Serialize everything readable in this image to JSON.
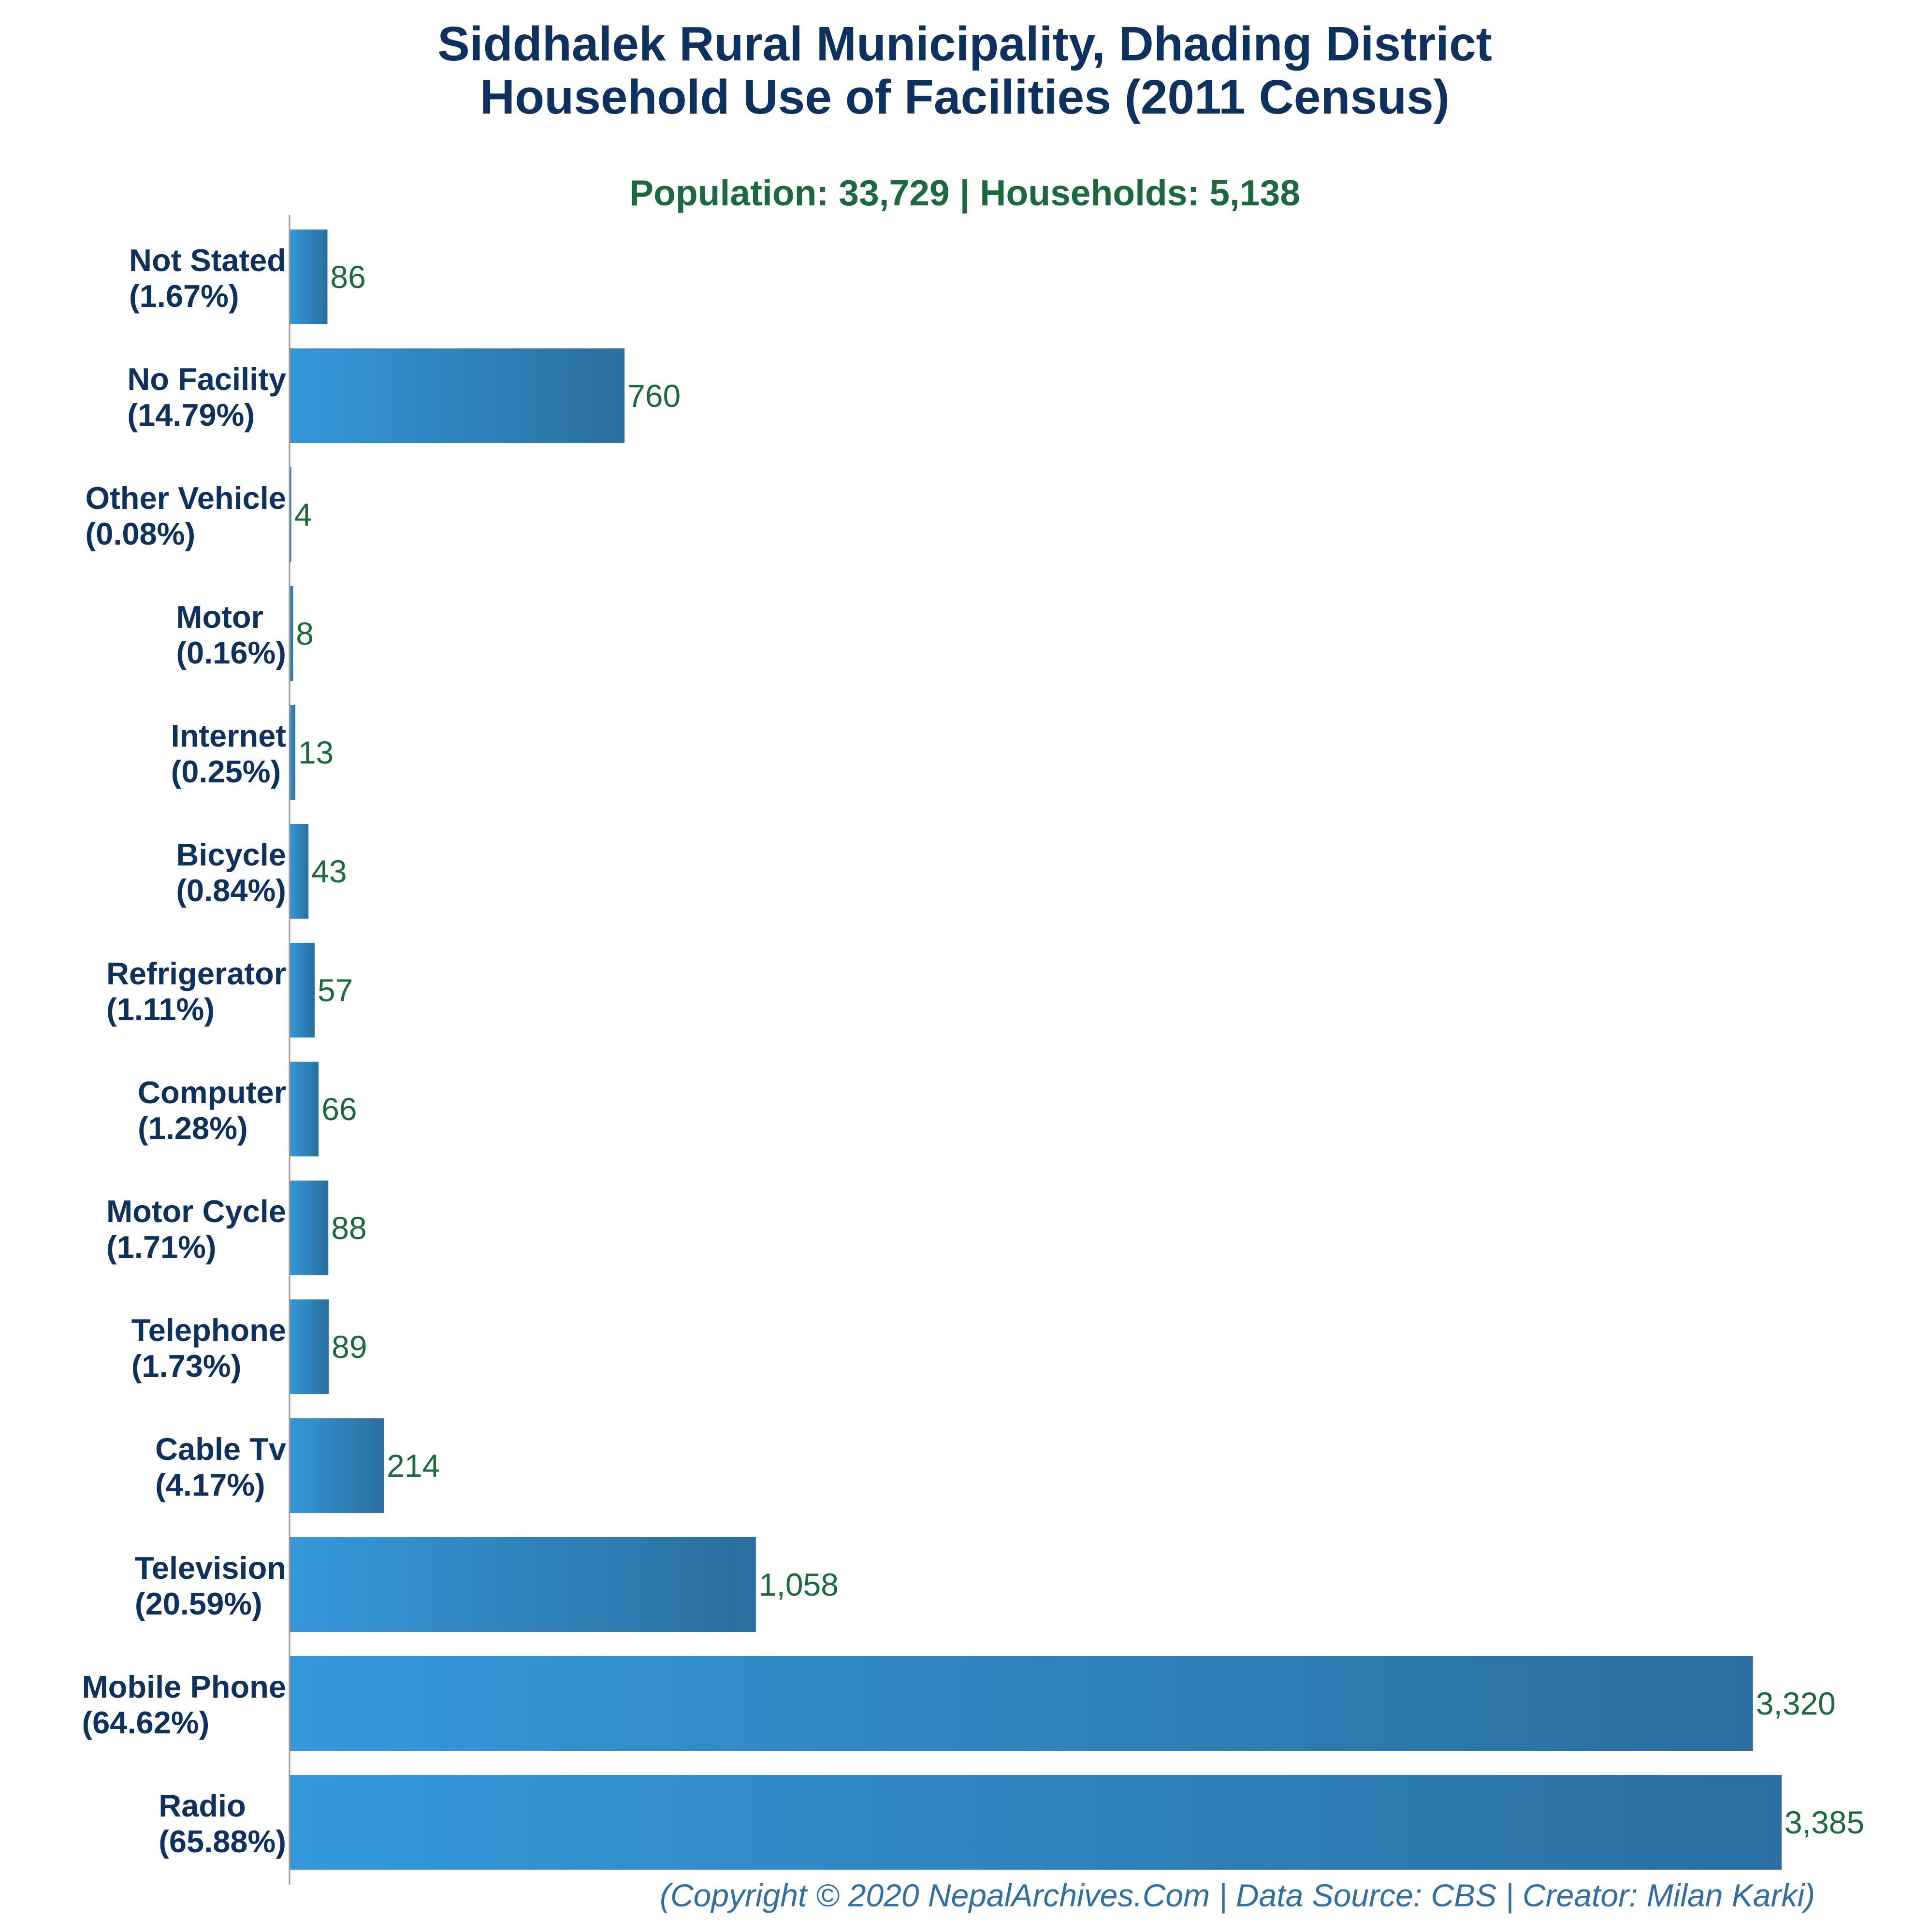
{
  "title_lines": [
    "Siddhalek Rural Municipality, Dhading District",
    "Household Use of Facilities (2011 Census)"
  ],
  "subtitle": "Population: 33,729 | Households: 5,138",
  "footer": "(Copyright © 2020 NepalArchives.Com | Data Source: CBS | Creator: Milan Karki)",
  "colors": {
    "title": "#0d3260",
    "subtitle": "#1b6a3e",
    "category_label": "#0d3260",
    "value_label": "#1b6a3e",
    "footer": "#2e6fa6",
    "bar_gradient_start": "#3498db",
    "bar_gradient_end": "#2a6f9f",
    "axis": "#999999"
  },
  "chart_data": {
    "type": "bar",
    "orientation": "horizontal",
    "title": "Siddhalek Rural Municipality, Dhading District Household Use of Facilities (2011 Census)",
    "xlabel": "",
    "ylabel": "",
    "xlim": [
      0,
      3385
    ],
    "grid": false,
    "legend": "none",
    "categories": [
      "Not Stated",
      "No Facility",
      "Other Vehicle",
      "Motor",
      "Internet",
      "Bicycle",
      "Refrigerator",
      "Computer",
      "Motor Cycle",
      "Telephone",
      "Cable Tv",
      "Television",
      "Mobile Phone",
      "Radio"
    ],
    "percent_labels": [
      "(1.67%)",
      "(14.79%)",
      "(0.08%)",
      "(0.16%)",
      "(0.25%)",
      "(0.84%)",
      "(1.11%)",
      "(1.28%)",
      "(1.71%)",
      "(1.73%)",
      "(4.17%)",
      "(20.59%)",
      "(64.62%)",
      "(65.88%)"
    ],
    "values": [
      86,
      760,
      4,
      8,
      13,
      43,
      57,
      66,
      88,
      89,
      214,
      1058,
      3320,
      3385
    ],
    "value_labels": [
      "86",
      "760",
      "4",
      "8",
      "13",
      "43",
      "57",
      "66",
      "88",
      "89",
      "214",
      "1,058",
      "3,320",
      "3,385"
    ]
  }
}
